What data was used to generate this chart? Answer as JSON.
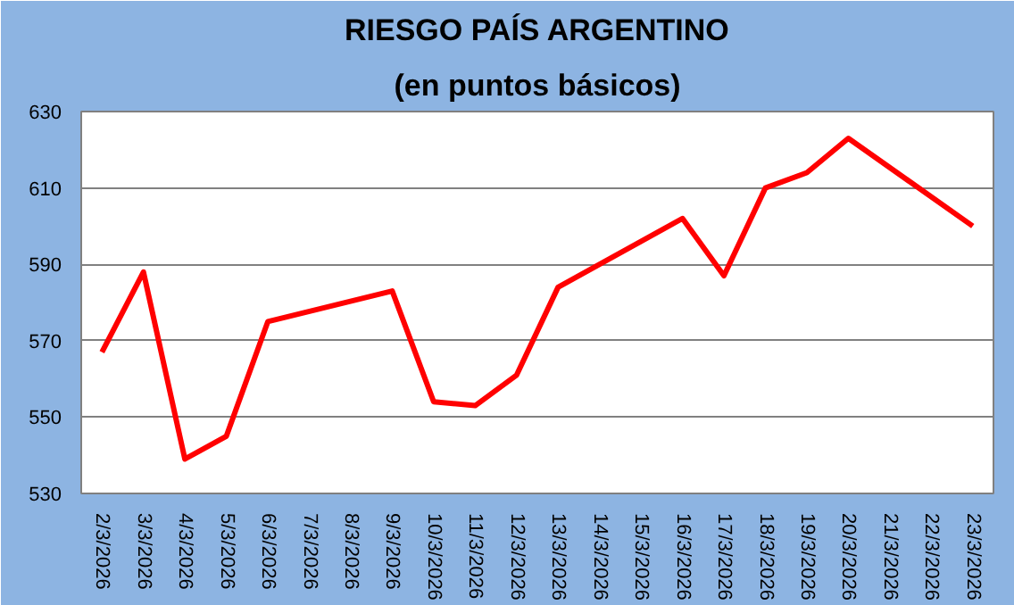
{
  "chart_data": {
    "type": "line",
    "title": "RIESGO PAÍS ARGENTINO",
    "subtitle": "(en puntos básicos)",
    "categories": [
      "2/3/2026",
      "3/3/2026",
      "4/3/2026",
      "5/3/2026",
      "6/3/2026",
      "7/3/2026",
      "8/3/2026",
      "9/3/2026",
      "10/3/2026",
      "11/3/2026",
      "12/3/2026",
      "13/3/2026",
      "14/3/2026",
      "15/3/2026",
      "16/3/2026",
      "17/3/2026",
      "18/3/2026",
      "19/3/2026",
      "20/3/2026",
      "21/3/2026",
      "22/3/2026",
      "23/3/2026"
    ],
    "series": [
      {
        "color": "#ff0000",
        "values": [
          567,
          588,
          539,
          545,
          575,
          null,
          null,
          583,
          554,
          553,
          561,
          584,
          null,
          null,
          602,
          587,
          610,
          614,
          623,
          null,
          null,
          600
        ]
      }
    ],
    "ylim": [
      530,
      630
    ],
    "yticks": [
      530,
      550,
      570,
      590,
      610,
      630
    ],
    "grid": "y",
    "marker": "none",
    "line_style": "solid"
  }
}
